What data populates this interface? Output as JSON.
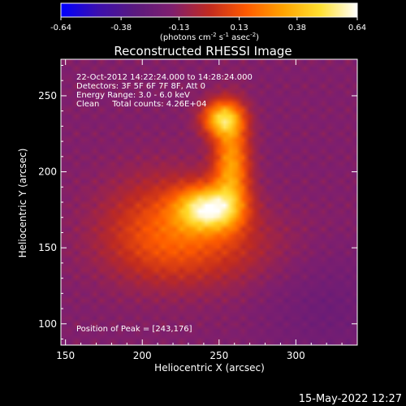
{
  "colorbar": {
    "ticks": [
      "-0.64",
      "-0.38",
      "-0.13",
      "0.13",
      "0.38",
      "0.64"
    ],
    "tick_values": [
      -0.64,
      -0.38,
      -0.13,
      0.13,
      0.38,
      0.64
    ],
    "units_main": "(photons cm",
    "units_exp1": "-2",
    "units_mid": " s",
    "units_exp2": "-1",
    "units_end": " asec",
    "units_exp3": "-2",
    "units_close": ")",
    "range": [
      -0.64,
      0.64
    ],
    "colors": [
      "#0000ff",
      "#3c0fae",
      "#5a1a7e",
      "#7f1f6e",
      "#c02a20",
      "#ff5a00",
      "#ffa300",
      "#ffe030",
      "#ffffff"
    ]
  },
  "chart_data": {
    "type": "heatmap",
    "title": "Reconstructed RHESSI Image",
    "xlabel": "Heliocentric X (arcsec)",
    "ylabel": "Heliocentric Y (arcsec)",
    "xlim": [
      147,
      340
    ],
    "ylim": [
      86,
      274
    ],
    "x_ticks": [
      150,
      200,
      250,
      300
    ],
    "y_ticks": [
      100,
      150,
      200,
      250
    ],
    "annotations": [
      "22-Oct-2012 14:22:24.000 to 14:28:24.000",
      "Detectors: 3F 5F 6F 7F 8F, Att 0",
      "Energy Range: 3.0 - 6.0 keV",
      "Clean     Total counts: 4.26E+04"
    ],
    "peak_label": "Position of Peak = [243,176]",
    "peak": [
      243,
      176
    ],
    "sources": [
      {
        "x": 243,
        "y": 176,
        "sigma_x": 14,
        "sigma_y": 10,
        "amp": 0.64
      },
      {
        "x": 258,
        "y": 205,
        "sigma_x": 8,
        "sigma_y": 22,
        "amp": 0.46
      },
      {
        "x": 252,
        "y": 235,
        "sigma_x": 9,
        "sigma_y": 8,
        "amp": 0.56
      },
      {
        "x": 215,
        "y": 165,
        "sigma_x": 28,
        "sigma_y": 24,
        "amp": 0.24
      },
      {
        "x": 240,
        "y": 150,
        "sigma_x": 40,
        "sigma_y": 18,
        "amp": 0.14
      }
    ],
    "background": -0.16,
    "grid": false
  },
  "timestamp": "15-May-2022 12:27"
}
